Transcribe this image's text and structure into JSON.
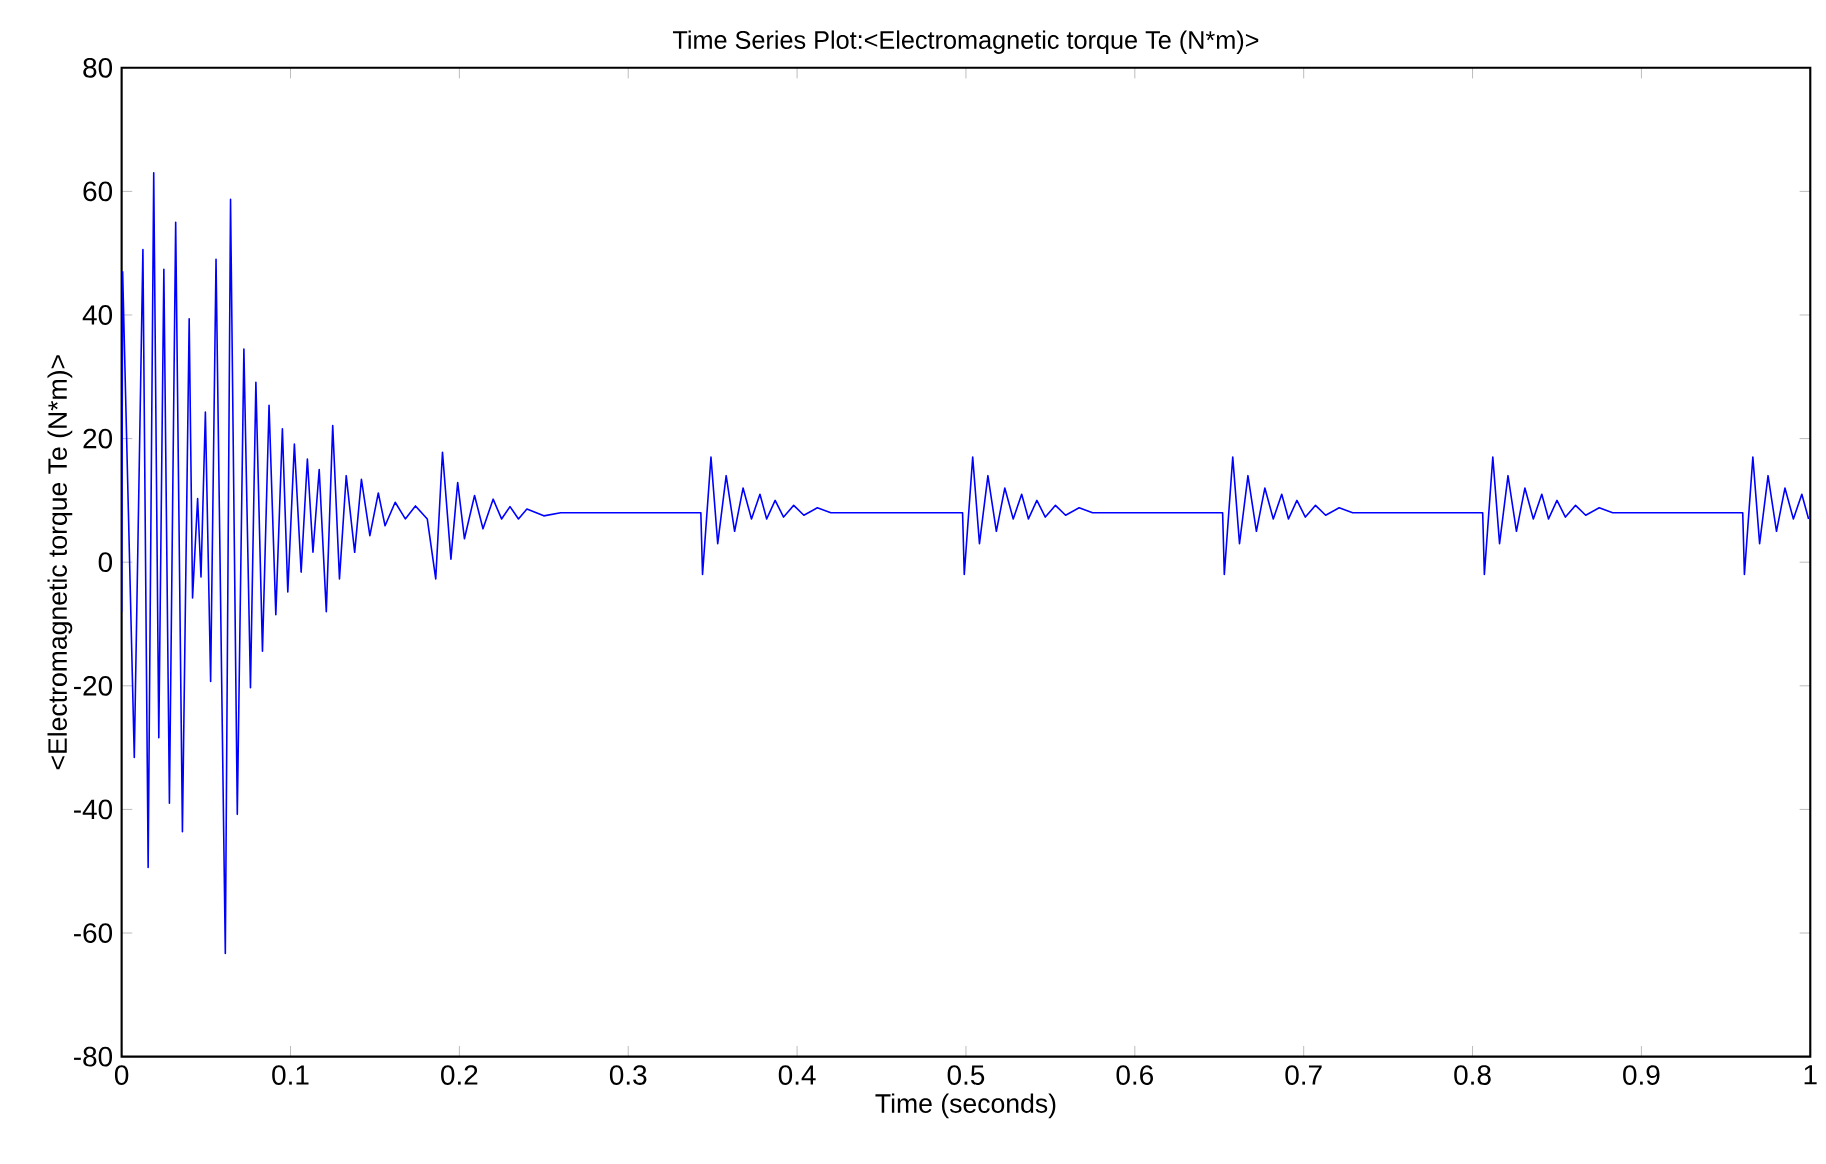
{
  "chart_data": {
    "type": "line",
    "title": "Time Series Plot:<Electromagnetic torque Te (N*m)>",
    "xlabel": "Time (seconds)",
    "ylabel": "<Electromagnetic torque Te (N*m)>",
    "x": [
      0.0,
      0.0006,
      0.0075,
      0.0126,
      0.0157,
      0.019,
      0.022,
      0.025,
      0.0283,
      0.032,
      0.036,
      0.04,
      0.042,
      0.045,
      0.047,
      0.0496,
      0.0527,
      0.0559,
      0.0614,
      0.0645,
      0.0685,
      0.0724,
      0.0763,
      0.0795,
      0.0834,
      0.0873,
      0.0913,
      0.0952,
      0.0984,
      0.1023,
      0.1063,
      0.11,
      0.1133,
      0.117,
      0.1212,
      0.125,
      0.129,
      0.133,
      0.138,
      0.142,
      0.147,
      0.152,
      0.156,
      0.162,
      0.168,
      0.174,
      0.181,
      0.186,
      0.19,
      0.195,
      0.199,
      0.203,
      0.209,
      0.214,
      0.22,
      0.225,
      0.23,
      0.235,
      0.24,
      0.25,
      0.26,
      0.343,
      0.344,
      0.349,
      0.353,
      0.358,
      0.363,
      0.368,
      0.373,
      0.378,
      0.382,
      0.387,
      0.392,
      0.398,
      0.404,
      0.412,
      0.42,
      0.498,
      0.499,
      0.504,
      0.508,
      0.513,
      0.518,
      0.523,
      0.528,
      0.533,
      0.537,
      0.542,
      0.547,
      0.553,
      0.559,
      0.567,
      0.575,
      0.652,
      0.653,
      0.658,
      0.662,
      0.667,
      0.672,
      0.677,
      0.682,
      0.687,
      0.691,
      0.696,
      0.701,
      0.707,
      0.713,
      0.721,
      0.729,
      0.806,
      0.807,
      0.812,
      0.816,
      0.821,
      0.826,
      0.831,
      0.836,
      0.841,
      0.845,
      0.85,
      0.855,
      0.861,
      0.867,
      0.875,
      0.883,
      0.96,
      0.961,
      0.966,
      0.97,
      0.975,
      0.98,
      0.985,
      0.99,
      0.995,
      0.999
    ],
    "series": [
      {
        "color": "#0000ff",
        "values": [
          -8,
          47,
          -31.6,
          50.6,
          -49.4,
          63,
          -28.4,
          47.4,
          -39,
          55,
          -43.6,
          39.4,
          -5.8,
          10.3,
          -2.4,
          24.3,
          -19.3,
          49,
          -63.3,
          58.7,
          -40.8,
          34.5,
          -20.3,
          29.1,
          -14.4,
          25.4,
          -8.5,
          21.6,
          -4.8,
          19.1,
          -1.6,
          16.7,
          1.6,
          15,
          -8,
          22.1,
          -2.7,
          14,
          1.6,
          13.4,
          4.3,
          11.2,
          5.9,
          9.7,
          7,
          9.1,
          7,
          -2.7,
          17.8,
          0.5,
          12.9,
          3.8,
          10.8,
          5.4,
          10.2,
          7,
          9,
          7,
          8.6,
          7.5,
          8,
          8,
          -2,
          17,
          3,
          14,
          5,
          12,
          7,
          11,
          7,
          10,
          7.3,
          9.2,
          7.6,
          8.8,
          8,
          8,
          -2,
          17,
          3,
          14,
          5,
          12,
          7,
          11,
          7,
          10,
          7.3,
          9.2,
          7.6,
          8.8,
          8,
          8,
          -2,
          17,
          3,
          14,
          5,
          12,
          7,
          11,
          7,
          10,
          7.3,
          9.2,
          7.6,
          8.8,
          8,
          8,
          -2,
          17,
          3,
          14,
          5,
          12,
          7,
          11,
          7,
          10,
          7.3,
          9.2,
          7.6,
          8.8,
          8,
          8,
          -2,
          17,
          3,
          14,
          5,
          12,
          7,
          11,
          7
        ]
      }
    ],
    "xlim": [
      0,
      1
    ],
    "ylim": [
      -80,
      80
    ],
    "xticks": [
      0,
      0.1,
      0.2,
      0.3,
      0.4,
      0.5,
      0.6,
      0.7,
      0.8,
      0.9,
      1
    ],
    "yticks": [
      -80,
      -60,
      -40,
      -20,
      0,
      20,
      40,
      60,
      80
    ],
    "grid": false,
    "marker": "none",
    "line_style": "solid"
  }
}
